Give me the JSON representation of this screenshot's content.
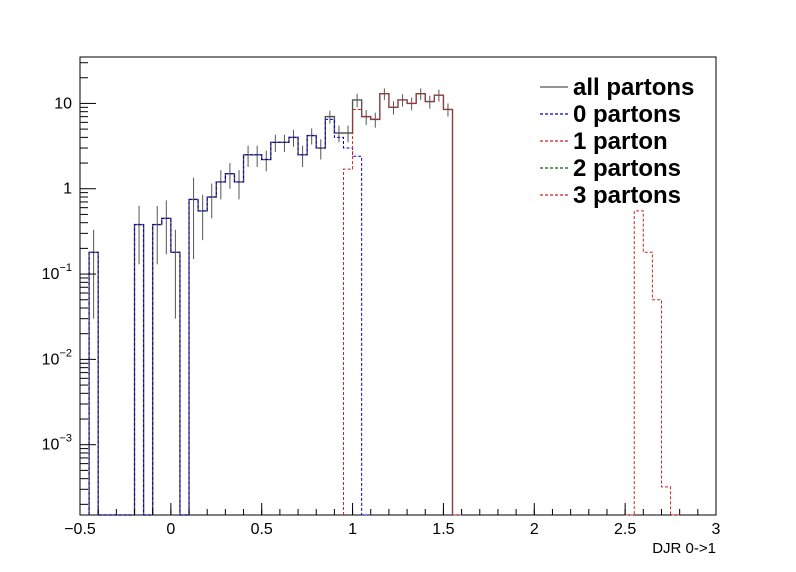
{
  "chart_data": {
    "type": "line",
    "title": "",
    "xlabel": "DJR 0->1",
    "ylabel": "",
    "xlim": [
      -0.5,
      3.0
    ],
    "ylim": [
      0.00015,
      35
    ],
    "log_y": true,
    "grid": false,
    "legend_position": "top-right",
    "bin_width": 0.05,
    "x_ticks": [
      -0.5,
      0,
      0.5,
      1,
      1.5,
      2,
      2.5,
      3
    ],
    "x_tick_labels": [
      "−0.5",
      "0",
      "0.5",
      "1",
      "1.5",
      "2",
      "2.5",
      "3"
    ],
    "y_ticks": [
      0.001,
      0.01,
      0.1,
      1,
      10
    ],
    "y_tick_labels": [
      {
        "base": "10",
        "exp": "−3"
      },
      {
        "base": "10",
        "exp": "−2"
      },
      {
        "base": "10",
        "exp": "−1"
      },
      {
        "base": "1",
        "exp": ""
      },
      {
        "base": "10",
        "exp": ""
      }
    ],
    "legend": [
      {
        "label": "all partons",
        "color": "#555555",
        "style": "solid"
      },
      {
        "label": "0 partons",
        "color": "#0000cc",
        "style": "dashed"
      },
      {
        "label": "1 parton",
        "color": "#cc2222",
        "style": "dashed"
      },
      {
        "label": "2 partons",
        "color": "#006600",
        "style": "dashed"
      },
      {
        "label": "3 partons",
        "color": "#cc2222",
        "style": "dashed"
      }
    ],
    "series": [
      {
        "name": "all partons",
        "color": "#555555",
        "bins": [
          [
            -0.45,
            0.18,
            0.15
          ],
          [
            -0.4,
            0,
            0
          ],
          [
            -0.35,
            0,
            0
          ],
          [
            -0.3,
            0,
            0
          ],
          [
            -0.25,
            0,
            0
          ],
          [
            -0.2,
            0.38,
            0.25
          ],
          [
            -0.15,
            0,
            0
          ],
          [
            -0.1,
            0.38,
            0.25
          ],
          [
            -0.05,
            0.45,
            0.28
          ],
          [
            0.0,
            0.18,
            0.15
          ],
          [
            0.05,
            0,
            0
          ],
          [
            0.1,
            0.75,
            0.6
          ],
          [
            0.15,
            0.55,
            0.3
          ],
          [
            0.2,
            0.8,
            0.35
          ],
          [
            0.25,
            1.2,
            0.45
          ],
          [
            0.3,
            1.5,
            0.5
          ],
          [
            0.35,
            1.2,
            0.45
          ],
          [
            0.4,
            2.5,
            0.7
          ],
          [
            0.45,
            2.5,
            0.7
          ],
          [
            0.5,
            2.2,
            0.6
          ],
          [
            0.55,
            3.5,
            0.8
          ],
          [
            0.6,
            3.5,
            0.8
          ],
          [
            0.65,
            4.0,
            0.9
          ],
          [
            0.7,
            2.5,
            0.7
          ],
          [
            0.75,
            4.2,
            0.9
          ],
          [
            0.8,
            3.0,
            0.8
          ],
          [
            0.85,
            7.0,
            1.2
          ],
          [
            0.9,
            4.5,
            1.0
          ],
          [
            0.95,
            4.5,
            1.0
          ],
          [
            1.0,
            11.0,
            2.0
          ],
          [
            1.05,
            7.0,
            1.4
          ],
          [
            1.1,
            6.5,
            1.3
          ],
          [
            1.15,
            13.0,
            2.0
          ],
          [
            1.2,
            9.0,
            1.6
          ],
          [
            1.25,
            11.0,
            1.8
          ],
          [
            1.3,
            10.0,
            1.7
          ],
          [
            1.35,
            13.0,
            2.0
          ],
          [
            1.4,
            10.5,
            1.8
          ],
          [
            1.45,
            12.5,
            2.0
          ],
          [
            1.5,
            8.5,
            1.5
          ]
        ]
      },
      {
        "name": "0 partons",
        "color": "#0000cc",
        "bins": [
          [
            -0.45,
            0.18,
            0
          ],
          [
            -0.4,
            0,
            0
          ],
          [
            -0.35,
            0,
            0
          ],
          [
            -0.3,
            0,
            0
          ],
          [
            -0.25,
            0,
            0
          ],
          [
            -0.2,
            0.38,
            0
          ],
          [
            -0.15,
            0,
            0
          ],
          [
            -0.1,
            0.38,
            0
          ],
          [
            -0.05,
            0.45,
            0
          ],
          [
            0.0,
            0.18,
            0
          ],
          [
            0.05,
            0,
            0
          ],
          [
            0.1,
            0.75,
            0
          ],
          [
            0.15,
            0.55,
            0
          ],
          [
            0.2,
            0.8,
            0
          ],
          [
            0.25,
            1.2,
            0
          ],
          [
            0.3,
            1.5,
            0
          ],
          [
            0.35,
            1.2,
            0
          ],
          [
            0.4,
            2.5,
            0
          ],
          [
            0.45,
            2.5,
            0
          ],
          [
            0.5,
            2.2,
            0
          ],
          [
            0.55,
            3.5,
            0
          ],
          [
            0.6,
            3.5,
            0
          ],
          [
            0.65,
            4.0,
            0
          ],
          [
            0.7,
            2.5,
            0
          ],
          [
            0.75,
            4.2,
            0
          ],
          [
            0.8,
            3.0,
            0
          ],
          [
            0.85,
            6.5,
            0
          ],
          [
            0.9,
            4.0,
            0
          ],
          [
            0.95,
            3.0,
            0
          ],
          [
            1.0,
            2.4,
            0
          ],
          [
            1.05,
            0,
            0
          ]
        ]
      },
      {
        "name": "1 parton",
        "color": "#cc2222",
        "bins": [
          [
            0.95,
            1.7,
            0
          ],
          [
            1.0,
            8.5,
            0
          ],
          [
            1.05,
            7.0,
            0
          ],
          [
            1.1,
            6.5,
            0
          ],
          [
            1.15,
            13.0,
            0
          ],
          [
            1.2,
            9.0,
            0
          ],
          [
            1.25,
            11.0,
            0
          ],
          [
            1.3,
            10.0,
            0
          ],
          [
            1.35,
            13.0,
            0
          ],
          [
            1.4,
            10.5,
            0
          ],
          [
            1.45,
            12.5,
            0
          ],
          [
            1.5,
            8.5,
            0
          ],
          [
            1.55,
            0,
            0
          ]
        ]
      },
      {
        "name": "3 partons",
        "color": "#cc2222",
        "bins": [
          [
            2.5,
            0,
            0
          ],
          [
            2.55,
            0.55,
            0
          ],
          [
            2.6,
            0.18,
            0
          ],
          [
            2.65,
            0.05,
            0
          ],
          [
            2.7,
            0.00032,
            0
          ],
          [
            2.75,
            0,
            0
          ]
        ]
      }
    ]
  }
}
